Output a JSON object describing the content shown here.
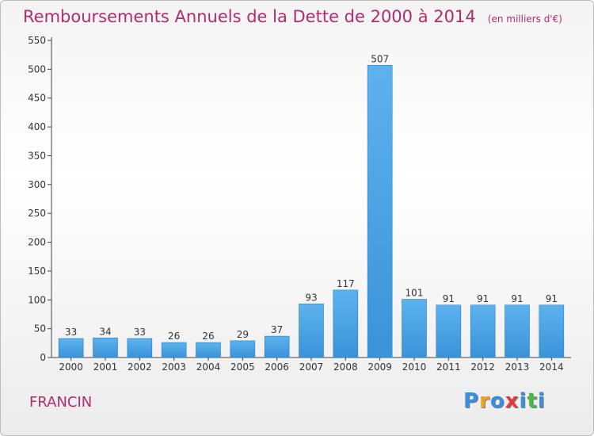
{
  "chart_data": {
    "type": "bar",
    "title": "Remboursements Annuels de la Dette de 2000 à 2014",
    "unit": "(en milliers d'€)",
    "categories": [
      "2000",
      "2001",
      "2002",
      "2003",
      "2004",
      "2005",
      "2006",
      "2007",
      "2008",
      "2009",
      "2010",
      "2011",
      "2012",
      "2013",
      "2014"
    ],
    "values": [
      33,
      34,
      33,
      26,
      26,
      29,
      37,
      93,
      117,
      507,
      101,
      91,
      91,
      91,
      91
    ],
    "value_labels": [
      "33",
      "34",
      "33",
      "26",
      "26",
      "29",
      "37",
      "93",
      "117",
      "507",
      "101",
      "91",
      "91",
      "91",
      "91"
    ],
    "y_ticks": [
      0,
      50,
      100,
      150,
      200,
      250,
      300,
      350,
      400,
      450,
      500,
      550
    ],
    "y_tick_labels": [
      "0",
      "50",
      "100",
      "150",
      "200",
      "250",
      "300",
      "350",
      "400",
      "450",
      "500",
      "550"
    ],
    "ylim": [
      0,
      550
    ],
    "grid": false,
    "bar_color": "#3a93d8"
  },
  "commune": "FRANCIN",
  "logo": {
    "letters": [
      "P",
      "r",
      "o",
      "x",
      "i",
      "t",
      "i"
    ],
    "colors": [
      "#3a8ee0",
      "#f0a020",
      "#3a8ee0",
      "#e23c3c",
      "#3a8ee0",
      "#4cb848",
      "#3a8ee0"
    ]
  }
}
